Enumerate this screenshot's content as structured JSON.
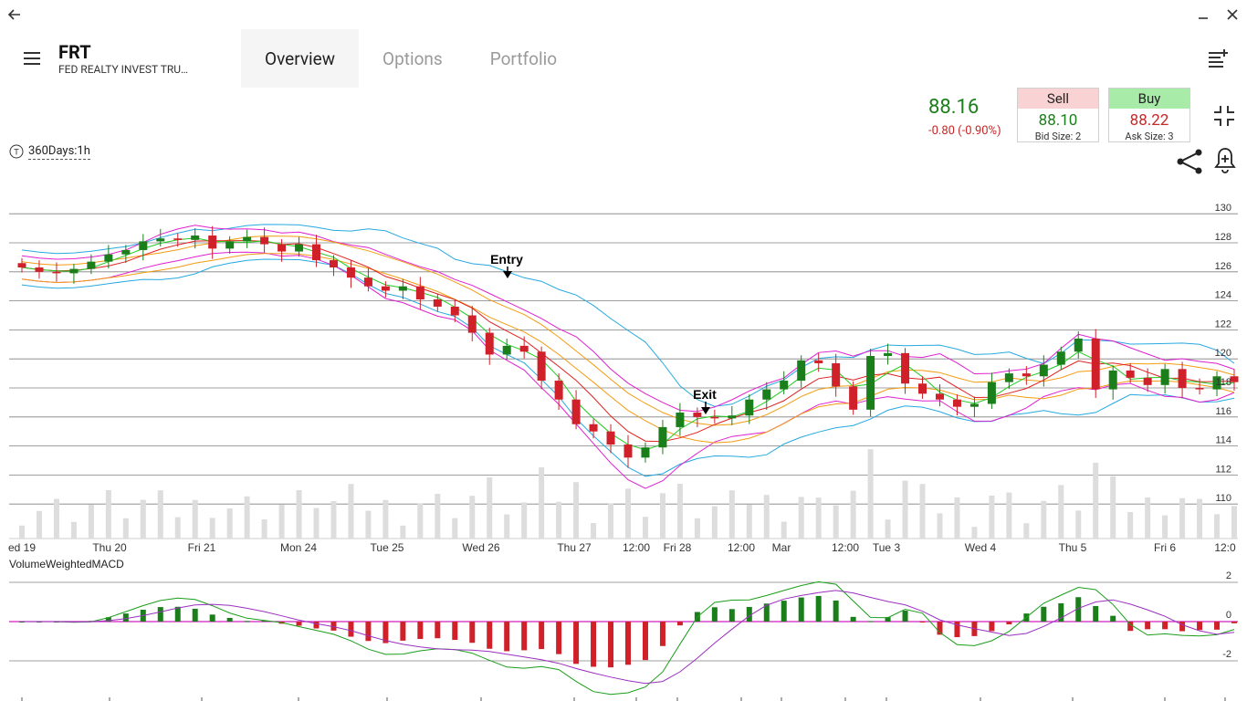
{
  "window": {
    "back": "back-arrow",
    "minimize": "minimize",
    "close": "close"
  },
  "symbol": {
    "ticker": "FRT",
    "name": "FED REALTY INVEST TRU…"
  },
  "tabs": [
    "Overview",
    "Options",
    "Portfolio"
  ],
  "quote": {
    "last": "88.16",
    "change": "-0.80 (-0.90%)",
    "sell": {
      "label": "Sell",
      "price": "88.10",
      "size": "Bid Size: 2"
    },
    "buy": {
      "label": "Buy",
      "price": "88.22",
      "size": "Ask Size: 3"
    }
  },
  "period": {
    "label": "360Days:1h"
  },
  "colors": {
    "up": "#1a7f1a",
    "down": "#d0202a",
    "sell_bg": "#f9d3d3",
    "buy_bg": "#a8eaa8"
  },
  "chart_data": [
    {
      "type": "candlestick",
      "x_labels": [
        "ed 19",
        "Thu 20",
        "Fri 21",
        "Mon 24",
        "Tue 25",
        "Wed 26",
        "Thu 27",
        "12:00",
        "Fri 28",
        "12:00",
        "Mar",
        "12:00",
        "Tue 3",
        "Wed 4",
        "Thu 5",
        "Fri 6",
        "12:0"
      ],
      "y_ticks": [
        "130",
        "128",
        "126",
        "124",
        "122",
        "120",
        "118",
        "116",
        "114",
        "112",
        "110"
      ],
      "annotations": [
        "Entry",
        "Exit"
      ],
      "series": [
        {
          "close": [
            126.3,
            126.0,
            125.9,
            126.2,
            126.7,
            127.2,
            127.5,
            128.1,
            128.3,
            128.2,
            128.5,
            127.6,
            128.1,
            128.4,
            127.9,
            127.4,
            127.9,
            126.8,
            126.3,
            125.6,
            125.0,
            124.7,
            125.0,
            124.1,
            123.6,
            123.0,
            121.8,
            120.3,
            120.9,
            120.5,
            118.5,
            117.2,
            115.5,
            115.0,
            114.1,
            113.2,
            113.9,
            115.3,
            116.3,
            116.0,
            115.9,
            116.1,
            117.2,
            117.9,
            118.5,
            119.9,
            119.7,
            118.1,
            116.5,
            120.2,
            120.4,
            118.3,
            117.6,
            117.2,
            116.7,
            116.9,
            118.4,
            119.0,
            118.8,
            119.6,
            120.5,
            121.4,
            117.9,
            119.2,
            118.7,
            118.2,
            119.3,
            118.0,
            117.9,
            118.8,
            118.4
          ]
        }
      ]
    },
    {
      "type": "bar",
      "title": "VolumeWeightedMACD",
      "y_ticks": [
        "2",
        "0",
        "-2"
      ]
    }
  ]
}
